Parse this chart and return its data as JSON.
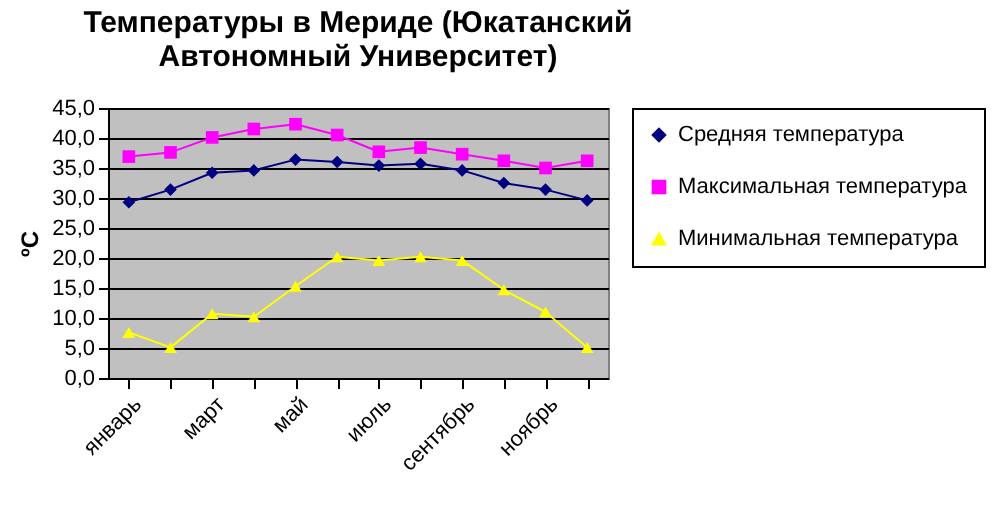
{
  "chart_data": {
    "type": "line",
    "title": "Температуры в Мериде (Юкатанский Автономный Университет)",
    "ylabel": "ºC",
    "categories": [
      "январь",
      null,
      "март",
      null,
      "май",
      null,
      "июль",
      null,
      "сентябрь",
      null,
      "ноябрь",
      null
    ],
    "series": [
      {
        "name": "Средняя температура",
        "color": "#000080",
        "marker": "diamond",
        "values": [
          29.3,
          31.4,
          34.2,
          34.6,
          36.4,
          36.0,
          35.4,
          35.7,
          34.6,
          32.5,
          31.4,
          29.6
        ]
      },
      {
        "name": "Максимальная температура",
        "color": "#ff00ff",
        "marker": "square",
        "values": [
          36.9,
          37.6,
          40.1,
          41.5,
          42.3,
          40.5,
          37.7,
          38.4,
          37.3,
          36.2,
          35.0,
          36.2
        ]
      },
      {
        "name": "Минимальная температура",
        "color": "#ffff00",
        "marker": "triangle",
        "values": [
          7.6,
          5.1,
          10.7,
          10.2,
          15.3,
          20.2,
          19.6,
          20.2,
          19.6,
          14.7,
          11.0,
          5.1
        ]
      }
    ],
    "ylim": [
      0,
      45
    ],
    "yticks": [
      {
        "value": 0,
        "label": "0,0"
      },
      {
        "value": 5,
        "label": "5,0"
      },
      {
        "value": 10,
        "label": "10,0"
      },
      {
        "value": 15,
        "label": "15,0"
      },
      {
        "value": 20,
        "label": "20,0"
      },
      {
        "value": 25,
        "label": "25,0"
      },
      {
        "value": 30,
        "label": "30,0"
      },
      {
        "value": 35,
        "label": "35,0"
      },
      {
        "value": 40,
        "label": "40,0"
      },
      {
        "value": 45,
        "label": "45,0"
      }
    ],
    "grid": "y",
    "legend": "right"
  }
}
